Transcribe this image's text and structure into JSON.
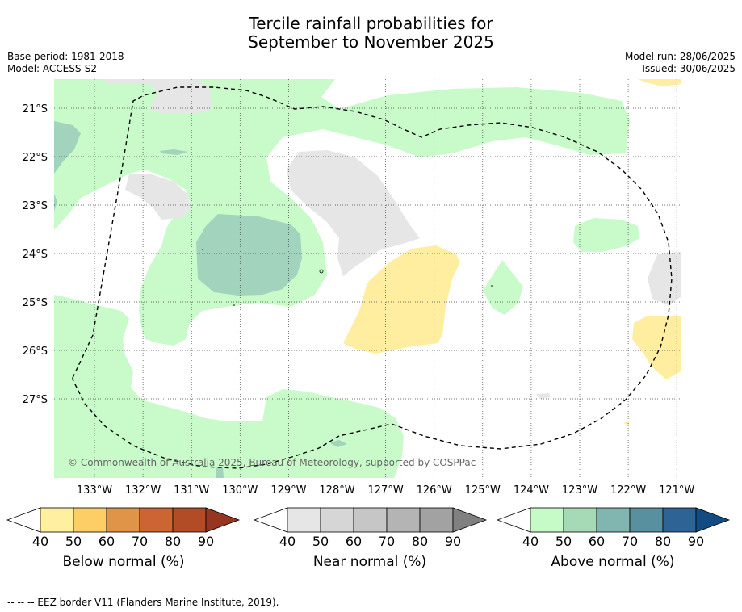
{
  "title_line1": "Tercile rainfall probabilities for",
  "title_line2": "September to November 2025",
  "base_period": "Base period: 1981-2018",
  "model": "Model: ACCESS-S2",
  "model_run": "Model run: 28/06/2025",
  "issued": "Issued: 30/06/2025",
  "copyright": "© Commonwealth of Australia 2025, Bureau of Meteorology, supported by COSPPac",
  "footnote": "--  --  -- EEZ border V11 (Flanders Marine Institute, 2019).",
  "lon_labels": [
    "133°W",
    "132°W",
    "131°W",
    "130°W",
    "129°W",
    "128°W",
    "127°W",
    "126°W",
    "125°W",
    "124°W",
    "123°W",
    "122°W",
    "121°W"
  ],
  "lat_labels": [
    "21°S",
    "22°S",
    "23°S",
    "24°S",
    "25°S",
    "26°S",
    "27°S"
  ],
  "colorbars": [
    {
      "title": "Below normal (%)",
      "ticks": [
        "40",
        "50",
        "60",
        "70",
        "80",
        "90"
      ],
      "colors": [
        "#fff0a0",
        "#fdce66",
        "#e09448",
        "#cd6532",
        "#b14c27",
        "#973620"
      ]
    },
    {
      "title": "Near normal (%)",
      "ticks": [
        "40",
        "50",
        "60",
        "70",
        "80",
        "90"
      ],
      "colors": [
        "#e6e6e6",
        "#d6d6d6",
        "#c6c6c6",
        "#b4b4b4",
        "#a2a2a2",
        "#808080"
      ]
    },
    {
      "title": "Above normal (%)",
      "ticks": [
        "40",
        "50",
        "60",
        "70",
        "80",
        "90"
      ],
      "colors": [
        "#c6fbc8",
        "#a6d9b6",
        "#81b6b0",
        "#5890a0",
        "#2e6495",
        "#124b82"
      ]
    }
  ],
  "map_colors": {
    "above_40": "#c8fbc9",
    "above_50": "#a1d3bd",
    "near_40": "#e6e6e6",
    "below_40": "#ffeda0"
  }
}
